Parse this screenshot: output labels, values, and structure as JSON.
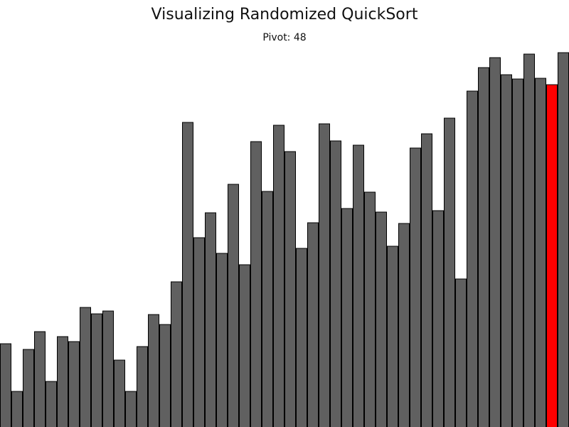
{
  "title": "Visualizing Randomized QuickSort",
  "pivot_prefix": "Pivot: ",
  "pivot_value": "48",
  "colors": {
    "bar": "#606060",
    "pivot": "#ff0000",
    "outline": "#000000",
    "background": "#ffffff"
  },
  "chart_data": {
    "type": "bar",
    "values": [
      117,
      50,
      109,
      134,
      64,
      127,
      120,
      168,
      159,
      163,
      94,
      50,
      113,
      158,
      144,
      204,
      428,
      266,
      301,
      244,
      341,
      228,
      401,
      331,
      424,
      387,
      251,
      287,
      426,
      402,
      307,
      396,
      330,
      302,
      254,
      286,
      392,
      412,
      304,
      434,
      208,
      472,
      505,
      519,
      495,
      489,
      524,
      490,
      481,
      526
    ],
    "highlight_index": 48,
    "ylim": [
      0,
      530
    ]
  }
}
